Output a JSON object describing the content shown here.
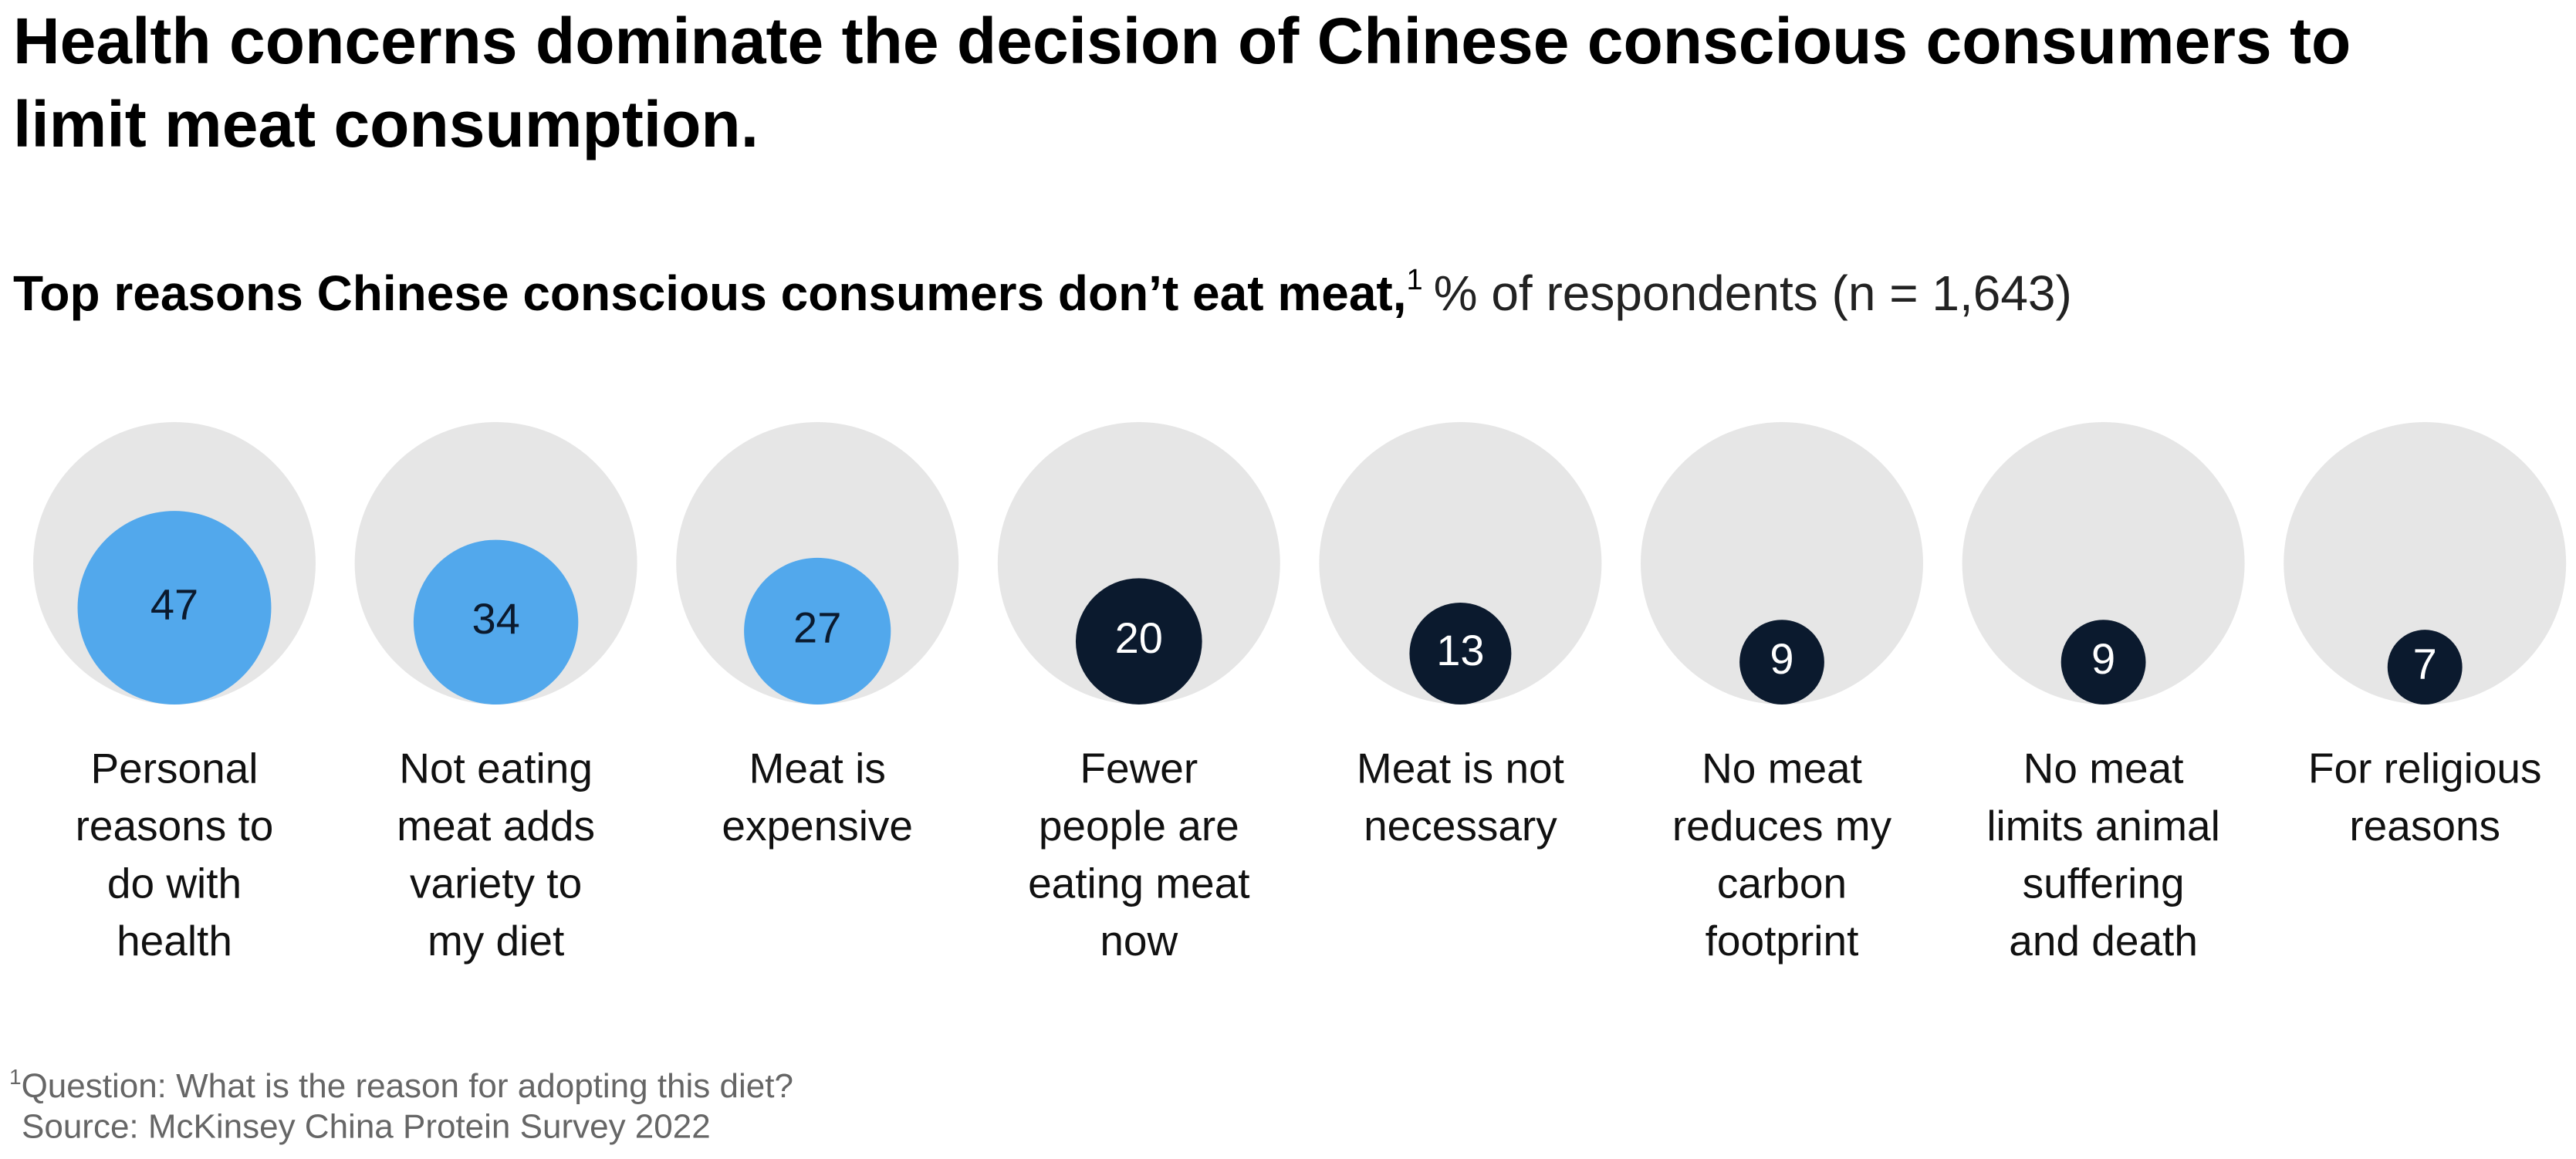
{
  "chart_data": {
    "type": "proportional-area",
    "title": [
      "Health concerns dominate the decision of Chinese conscious consumers to",
      "limit meat consumption."
    ],
    "subtitle": "Top reasons Chinese conscious consumers don’t eat meat,",
    "subtitle_marker": "1",
    "unit": "% of respondents (n = 1,643)",
    "categories": [
      [
        "Personal",
        "reasons to",
        "do with",
        "health"
      ],
      [
        "Not eating",
        "meat adds",
        "variety to",
        "my diet"
      ],
      [
        "Meat is",
        "expensive"
      ],
      [
        "Fewer",
        "people are",
        "eating meat",
        "now"
      ],
      [
        "Meat is not",
        "necessary"
      ],
      [
        "No meat",
        "reduces my",
        "carbon",
        "footprint"
      ],
      [
        "No meat",
        "limits animal",
        "suffering",
        "and death"
      ],
      [
        "For religious",
        "reasons"
      ]
    ],
    "values": [
      47,
      34,
      27,
      20,
      13,
      9,
      9,
      7
    ],
    "colors": [
      "#52a8ec",
      "#52a8ec",
      "#52a8ec",
      "#0b1a2e",
      "#0b1a2e",
      "#0b1a2e",
      "#0b1a2e",
      "#0b1a2e"
    ],
    "rlim": [
      0,
      100
    ],
    "background_color": "#e6e6e6",
    "footnote_marker": "1",
    "footnote": "Question: What is the reason for adopting this diet?",
    "source": "Source: McKinsey China Protein Survey 2022"
  }
}
